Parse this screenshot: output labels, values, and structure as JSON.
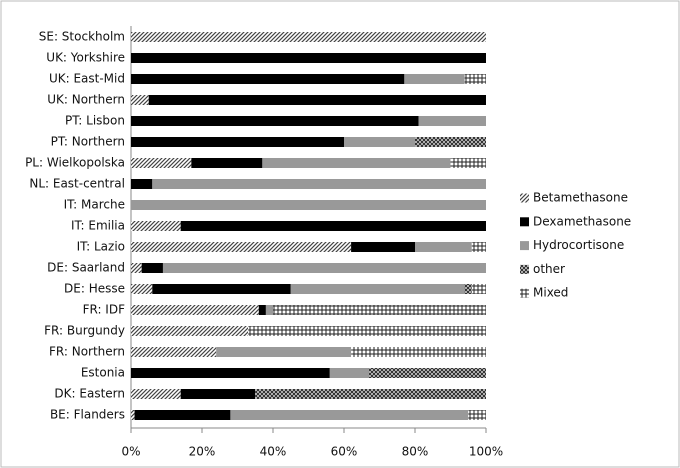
{
  "chart_data": {
    "type": "stacked-barh",
    "categories": [
      "SE: Stockholm",
      "UK: Yorkshire",
      "UK: East-Mid",
      "UK: Northern",
      "PT: Lisbon",
      "PT: Northern",
      "PL: Wielkopolska",
      "NL: East-central",
      "IT: Marche",
      "IT: Emilia",
      "IT: Lazio",
      "DE: Saarland",
      "DE: Hesse",
      "FR: IDF",
      "FR: Burgundy",
      "FR: Northern",
      "Estonia",
      "DK: Eastern",
      "BE: Flanders"
    ],
    "series": [
      {
        "name": "Betamethasone",
        "color": "#444444",
        "pattern": "diagonal",
        "values": [
          100,
          0,
          0,
          5,
          0,
          0,
          17,
          0,
          0,
          14,
          62,
          3,
          6,
          36,
          33,
          24,
          0,
          14,
          1
        ]
      },
      {
        "name": "Dexamethasone",
        "color": "#000000",
        "pattern": "solid",
        "values": [
          0,
          100,
          77,
          95,
          81,
          60,
          20,
          6,
          0,
          86,
          18,
          6,
          39,
          2,
          0,
          0,
          56,
          21,
          27
        ]
      },
      {
        "name": "Hydrocortisone",
        "color": "#999999",
        "pattern": "solid",
        "values": [
          0,
          0,
          17,
          0,
          19,
          20,
          53,
          94,
          100,
          0,
          16,
          91,
          49,
          2,
          0,
          38,
          11,
          0,
          67
        ]
      },
      {
        "name": "other",
        "color": "#333333",
        "pattern": "dots",
        "values": [
          0,
          0,
          0,
          0,
          0,
          20,
          0,
          0,
          0,
          0,
          0,
          0,
          2,
          0,
          0,
          0,
          33,
          65,
          0
        ]
      },
      {
        "name": "Mixed",
        "color": "#222222",
        "pattern": "grid",
        "values": [
          0,
          0,
          6,
          0,
          0,
          0,
          10,
          0,
          0,
          0,
          4,
          0,
          4,
          60,
          67,
          38,
          0,
          0,
          5
        ]
      }
    ],
    "xlim": [
      0,
      100
    ],
    "xticks": [
      {
        "value": 0,
        "label": "0%"
      },
      {
        "value": 20,
        "label": "20%"
      },
      {
        "value": 40,
        "label": "40%"
      },
      {
        "value": 60,
        "label": "60%"
      },
      {
        "value": 80,
        "label": "80%"
      },
      {
        "value": 100,
        "label": "100%"
      }
    ],
    "legend": "right"
  }
}
